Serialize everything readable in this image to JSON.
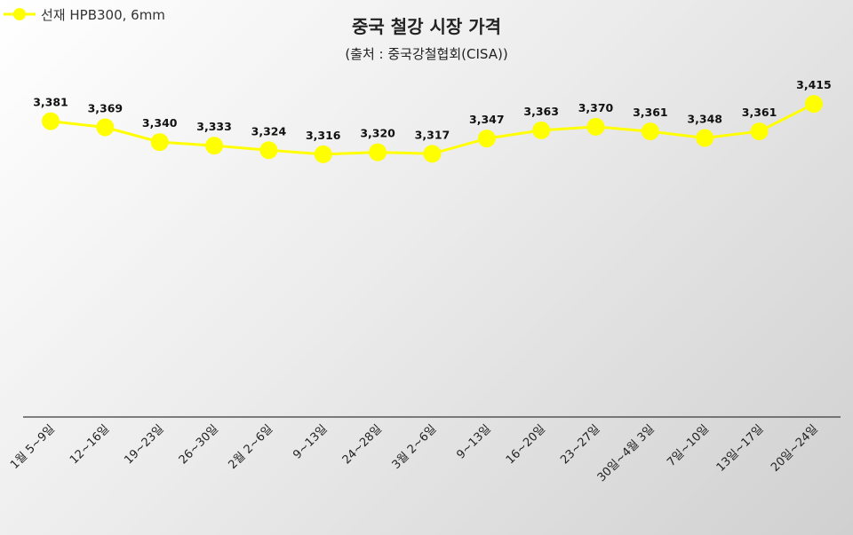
{
  "chart_data": {
    "type": "line",
    "title": "중국 철강 시장 가격",
    "subtitle": "(출처 : 중국강철협회(CISA))",
    "categories": [
      "1월 5~9일",
      "12~16일",
      "19~23일",
      "26~30일",
      "2월 2~6일",
      "9~13일",
      "24~28일",
      "3월 2~6일",
      "9~13일",
      "16~20일",
      "23~27일",
      "30일~4월 3일",
      "7일~10일",
      "13일~17일",
      "20일~24일"
    ],
    "series": [
      {
        "name": "선재 HPB300, 6mm",
        "values": [
          3381,
          3369,
          3340,
          3333,
          3324,
          3316,
          3320,
          3317,
          3347,
          3363,
          3370,
          3361,
          3348,
          3361,
          3415
        ],
        "labels": [
          "3,381",
          "3,369",
          "3,340",
          "3,333",
          "3,324",
          "3,316",
          "3,320",
          "3,317",
          "3,347",
          "3,363",
          "3,370",
          "3,361",
          "3,348",
          "3,361",
          "3,415"
        ],
        "color": "#ffff00"
      }
    ],
    "xlabel": "",
    "ylabel": "",
    "ylim": [
      2800,
      3450
    ],
    "grid": false,
    "legend_position": "top-left"
  }
}
